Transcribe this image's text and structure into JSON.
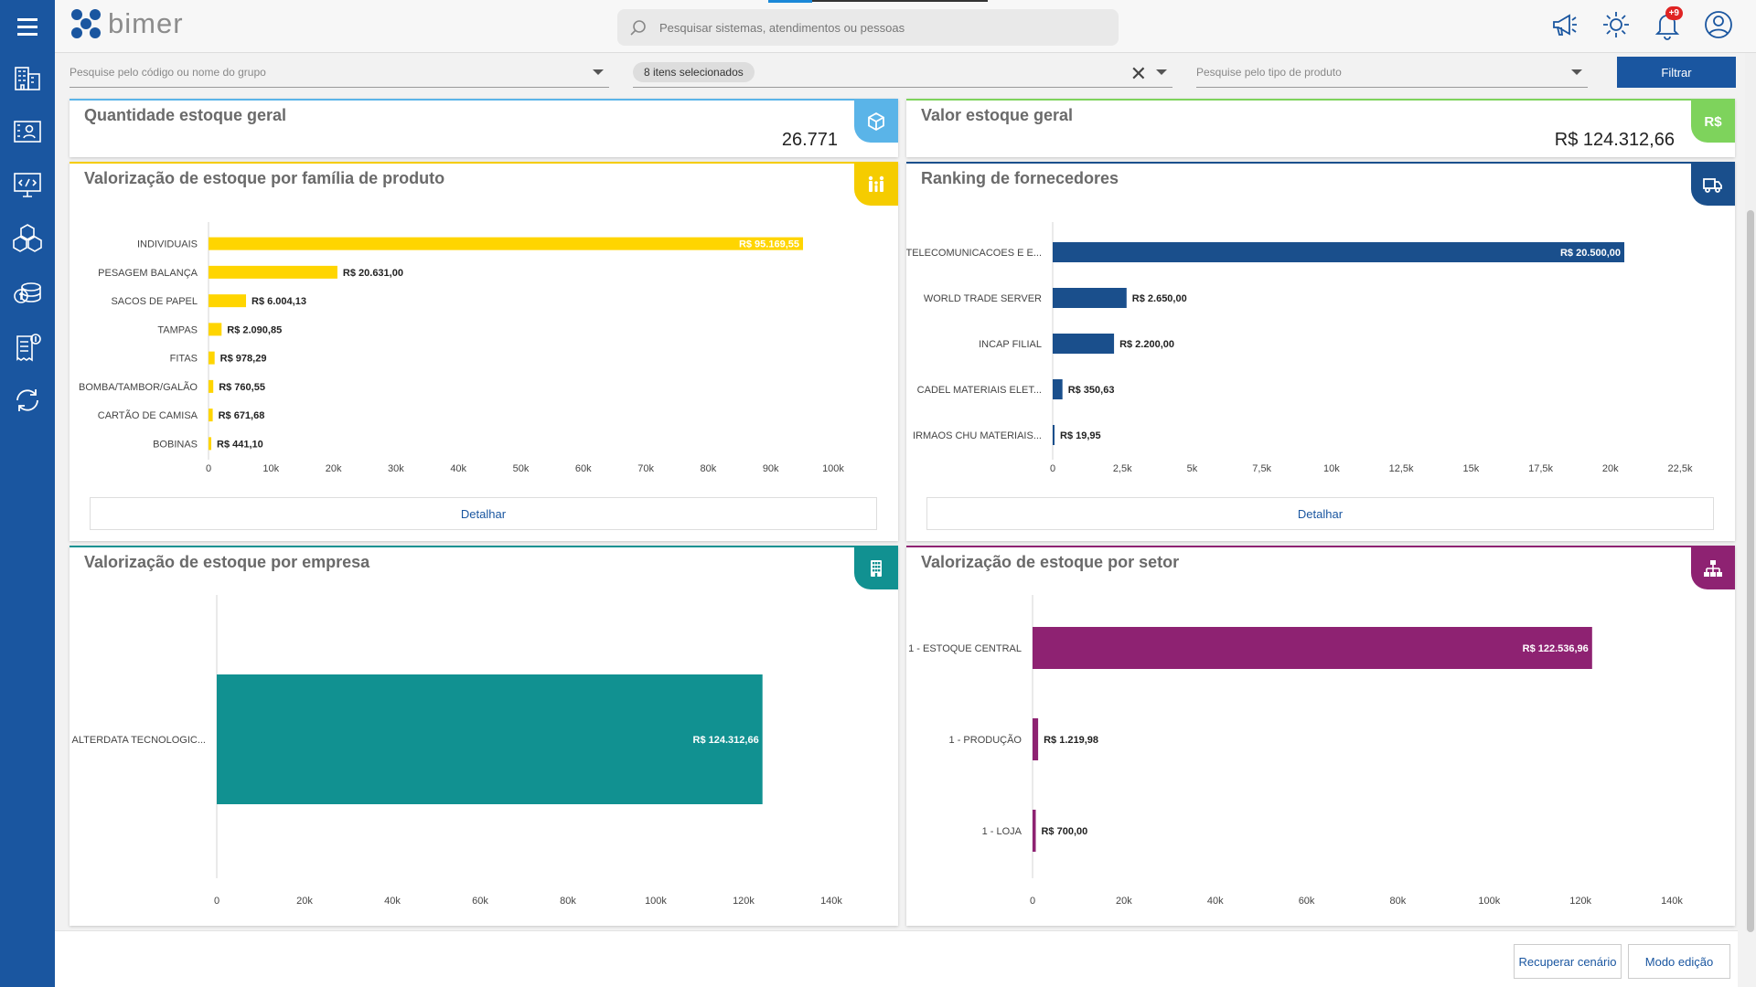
{
  "app": {
    "logo_text": "bimer"
  },
  "header": {
    "search_placeholder": "Pesquisar sistemas, atendimentos ou pessoas",
    "notifications_badge": "+9"
  },
  "sidebar": {
    "items": [
      {
        "icon": "menu-icon"
      },
      {
        "icon": "building-icon"
      },
      {
        "icon": "contacts-icon"
      },
      {
        "icon": "monitor-code-icon"
      },
      {
        "icon": "boxes-icon"
      },
      {
        "icon": "coins-icon"
      },
      {
        "icon": "invoice-icon"
      },
      {
        "icon": "refresh-icon"
      }
    ]
  },
  "filters": {
    "group_placeholder": "Pesquise pelo código ou nome do grupo",
    "selected_chip": "8 itens selecionados",
    "product_type_placeholder": "Pesquise pelo tipo de produto",
    "filter_button": "Filtrar"
  },
  "kpis": {
    "quantity": {
      "title": "Quantidade estoque geral",
      "value": "26.771",
      "color": "#5ab4e8"
    },
    "value": {
      "title": "Valor estoque geral",
      "value": "R$ 124.312,66",
      "color": "#7ed35c"
    }
  },
  "cards": {
    "family": {
      "title": "Valorização de estoque por família de produto",
      "detail": "Detalhar",
      "color": "#f5cc00"
    },
    "suppliers": {
      "title": "Ranking de fornecedores",
      "detail": "Detalhar",
      "color": "#1a4f8c"
    },
    "company": {
      "title": "Valorização de estoque por empresa",
      "color": "#119191"
    },
    "sector": {
      "title": "Valorização de estoque por setor",
      "color": "#8e2272"
    }
  },
  "chart_data": [
    {
      "type": "bar",
      "orientation": "horizontal",
      "categories": [
        "INDIVIDUAIS",
        "PESAGEM BALANÇA",
        "SACOS DE PAPEL",
        "TAMPAS",
        "FITAS",
        "BOMBA/TAMBOR/GALÃO",
        "CARTÃO DE CAMISA",
        "BOBINAS"
      ],
      "values": [
        95169.55,
        20631.0,
        6004.13,
        2090.85,
        978.29,
        760.55,
        671.68,
        441.1
      ],
      "labels": [
        "R$ 95.169,55",
        "R$ 20.631,00",
        "R$ 6.004,13",
        "R$ 2.090,85",
        "R$ 978,29",
        "R$ 760,55",
        "R$ 671,68",
        "R$ 441,10"
      ],
      "xlim": [
        0,
        100000
      ],
      "ticks": [
        "0",
        "10k",
        "20k",
        "30k",
        "40k",
        "50k",
        "60k",
        "70k",
        "80k",
        "90k",
        "100k"
      ],
      "color": "#ffd500"
    },
    {
      "type": "bar",
      "orientation": "horizontal",
      "categories": [
        "TELECOMUNICACOES E E...",
        "WORLD TRADE SERVER",
        "INCAP FILIAL",
        "CADEL MATERIAIS ELET...",
        "IRMAOS CHU MATERIAIS..."
      ],
      "values": [
        20500.0,
        2650.0,
        2200.0,
        350.63,
        19.95
      ],
      "labels": [
        "R$ 20.500,00",
        "R$ 2.650,00",
        "R$ 2.200,00",
        "R$ 350,63",
        "R$ 19,95"
      ],
      "xlim": [
        0,
        22500
      ],
      "ticks": [
        "0",
        "2,5k",
        "5k",
        "7,5k",
        "10k",
        "12,5k",
        "15k",
        "17,5k",
        "20k",
        "22,5k"
      ],
      "color": "#1a4f8c"
    },
    {
      "type": "bar",
      "orientation": "horizontal",
      "categories": [
        "ALTERDATA TECNOLOGIC..."
      ],
      "values": [
        124312.66
      ],
      "labels": [
        "R$ 124.312,66"
      ],
      "xlim": [
        0,
        140000
      ],
      "ticks": [
        "0",
        "20k",
        "40k",
        "60k",
        "80k",
        "100k",
        "120k",
        "140k"
      ],
      "color": "#119191"
    },
    {
      "type": "bar",
      "orientation": "horizontal",
      "categories": [
        "1 - ESTOQUE CENTRAL",
        "1 - PRODUÇÃO",
        "1 - LOJA"
      ],
      "values": [
        122536.96,
        1219.98,
        700.0
      ],
      "labels": [
        "R$ 122.536,96",
        "R$ 1.219,98",
        "R$ 700,00"
      ],
      "xlim": [
        0,
        140000
      ],
      "ticks": [
        "0",
        "20k",
        "40k",
        "60k",
        "80k",
        "100k",
        "120k",
        "140k"
      ],
      "color": "#8e2272"
    }
  ],
  "footer": {
    "recover_button": "Recuperar cenário",
    "edit_mode_button": "Modo edição"
  }
}
